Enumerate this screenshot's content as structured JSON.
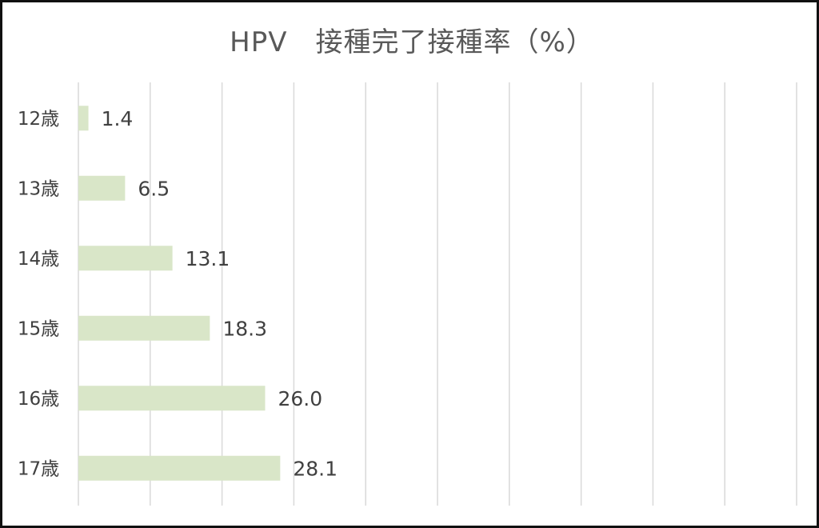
{
  "chart_data": {
    "type": "bar",
    "orientation": "horizontal",
    "title": "HPV　接種完了接種率（%）",
    "categories": [
      "12歳",
      "13歳",
      "14歳",
      "15歳",
      "16歳",
      "17歳"
    ],
    "values": [
      1.4,
      6.5,
      13.1,
      18.3,
      26.0,
      28.1
    ],
    "value_labels": [
      "1.4",
      "6.5",
      "13.1",
      "18.3",
      "26.0",
      "28.1"
    ],
    "xlim": [
      0,
      100
    ],
    "xticks_step": 10,
    "grid": "vertical",
    "bar_color": "#d9e6c8",
    "grid_color": "#d9d9d9",
    "text_color": "#404040"
  }
}
